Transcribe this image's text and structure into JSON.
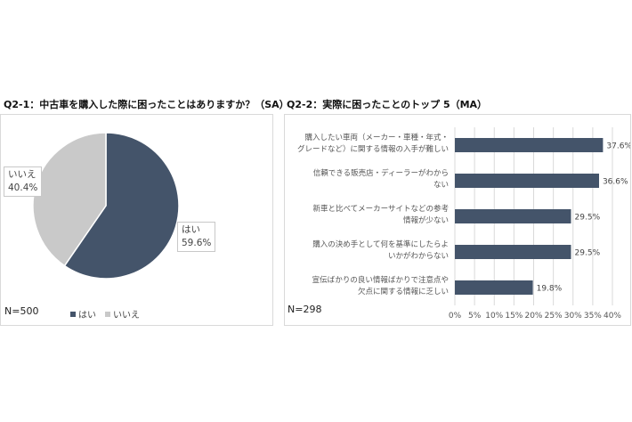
{
  "left": {
    "title": "Q2-1：中古車を購入した際に困ったことはありますか？（SA）",
    "n_label": "N=500"
  },
  "right": {
    "title": "Q2-2：実際に困ったことのトップ 5（MA）",
    "n_label": "N=298"
  },
  "colors": {
    "dark": "#44546a",
    "gray": "#c9c9c9",
    "grid": "#d9d9d9"
  },
  "chart_data": [
    {
      "type": "pie",
      "slices": [
        {
          "label": "はい",
          "value": 59.6,
          "value_label": "59.6%",
          "color": "#44546a"
        },
        {
          "label": "いいえ",
          "value": 40.4,
          "value_label": "40.4%",
          "color": "#c9c9c9"
        }
      ],
      "legend": [
        "はい",
        "いいえ"
      ],
      "legend_position": "bottom"
    },
    {
      "type": "bar",
      "orientation": "horizontal",
      "categories": [
        [
          "購入したい車両（メーカー・車種・年式・",
          "グレードなど）に関する情報の入手が難しい"
        ],
        [
          "信頼できる販売店・ディーラーがわから",
          "ない"
        ],
        [
          "新車と比べてメーカーサイトなどの参考",
          "情報が少ない"
        ],
        [
          "購入の決め手として何を基準にしたらよ",
          "いかがわからない"
        ],
        [
          "宣伝ばかりの良い情報ばかりで注意点や",
          "欠点に関する情報に乏しい"
        ]
      ],
      "values": [
        37.6,
        36.6,
        29.5,
        29.5,
        19.8
      ],
      "value_labels": [
        "37.6%",
        "36.6%",
        "29.5%",
        "29.5%",
        "19.8%"
      ],
      "xlim": [
        0,
        40
      ],
      "xticks": [
        "0%",
        "5%",
        "10%",
        "15%",
        "20%",
        "25%",
        "30%",
        "35%",
        "40%"
      ],
      "grid": true
    }
  ]
}
